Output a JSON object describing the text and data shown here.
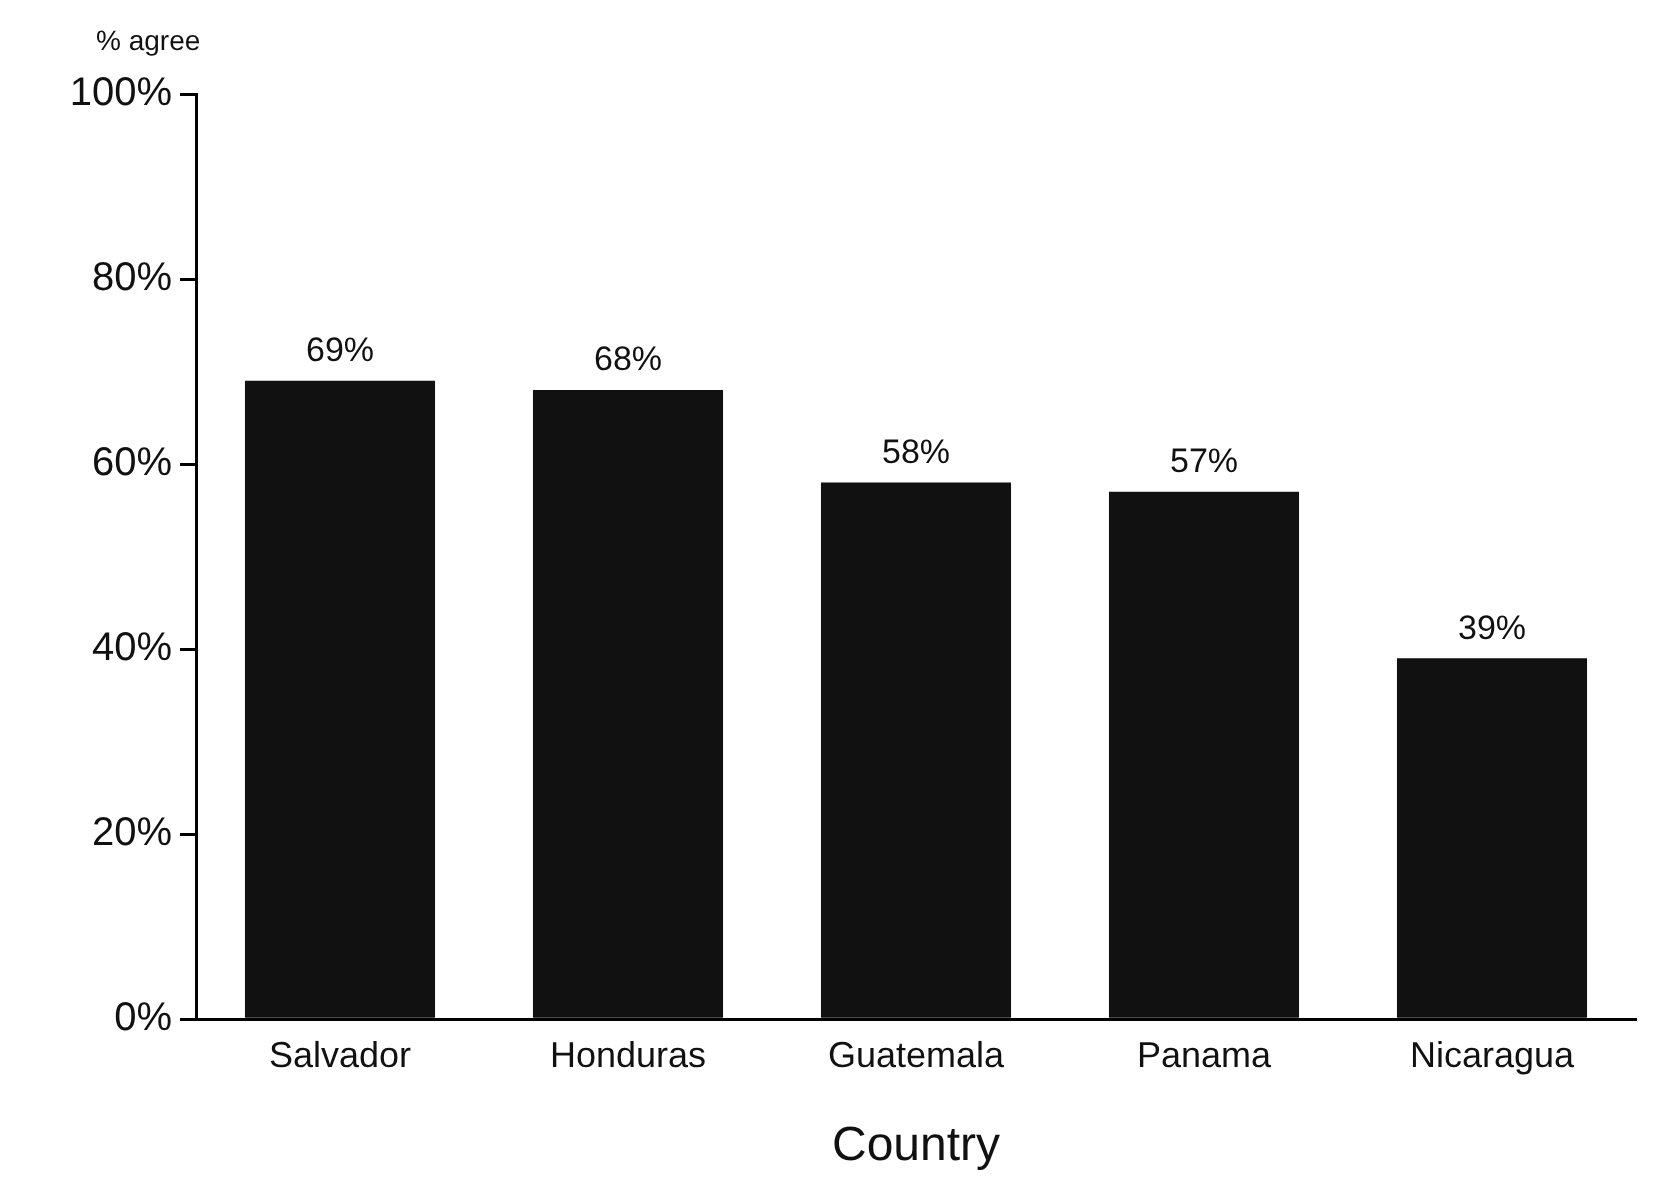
{
  "chart_data": {
    "type": "bar",
    "ylabel": "% agree",
    "xlabel": "Country",
    "categories": [
      "Salvador",
      "Honduras",
      "Guatemala",
      "Panama",
      "Nicaragua"
    ],
    "values": [
      69,
      68,
      58,
      57,
      39
    ],
    "value_labels": [
      "69%",
      "68%",
      "58%",
      "57%",
      "39%"
    ],
    "color": "#111111",
    "ylim": [
      0,
      100
    ],
    "yticks": [
      {
        "value": 0,
        "label": "0%"
      },
      {
        "value": 20,
        "label": "20%"
      },
      {
        "value": 40,
        "label": "40%"
      },
      {
        "value": 60,
        "label": "60%"
      },
      {
        "value": 80,
        "label": "80%"
      },
      {
        "value": 100,
        "label": "100%"
      }
    ],
    "grid": false,
    "legend": false
  }
}
